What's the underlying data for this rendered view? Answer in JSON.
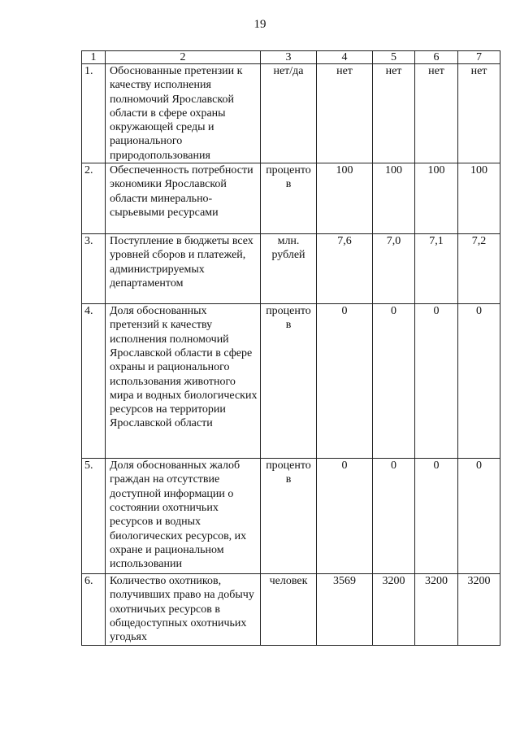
{
  "page_number": "19",
  "table": {
    "headers": [
      "1",
      "2",
      "3",
      "4",
      "5",
      "6",
      "7"
    ],
    "rows": [
      {
        "num": "1.",
        "text": "Обоснованные претензии к качеству исполнения полномочий Ярославской области в сфере охраны окружающей среды и рационального природопользования",
        "unit": "нет/да",
        "values": [
          "нет",
          "нет",
          "нет",
          "нет"
        ]
      },
      {
        "num": "2.",
        "text": "Обеспеченность потребности экономики Ярославской области минерально-сырьевыми ресурсами",
        "unit": "процентов",
        "values": [
          "100",
          "100",
          "100",
          "100"
        ]
      },
      {
        "num": "3.",
        "text": "Поступление в бюджеты всех уровней сборов и платежей, администрируемых департаментом",
        "unit": "млн. рублей",
        "values": [
          "7,6",
          "7,0",
          "7,1",
          "7,2"
        ]
      },
      {
        "num": "4.",
        "text": "Доля обоснованных претензий к качеству исполнения полномочий Ярославской области в сфере охраны и рационального использования животного мира и водных биологических ресурсов на территории Ярославской области",
        "unit": "процентов",
        "values": [
          "0",
          "0",
          "0",
          "0"
        ]
      },
      {
        "num": "5.",
        "text": "Доля обоснованных жалоб граждан на отсутствие доступной информации о состоянии охотничьих ресурсов и водных биологических ресурсов, их охране и рациональном использовании",
        "unit": "процентов",
        "values": [
          "0",
          "0",
          "0",
          "0"
        ]
      },
      {
        "num": "6.",
        "text": "Количество охотников, получивших право на добычу охотничьих ресурсов в общедоступных охотничьих угодьях",
        "unit": "человек",
        "values": [
          "3569",
          "3200",
          "3200",
          "3200"
        ]
      }
    ]
  }
}
